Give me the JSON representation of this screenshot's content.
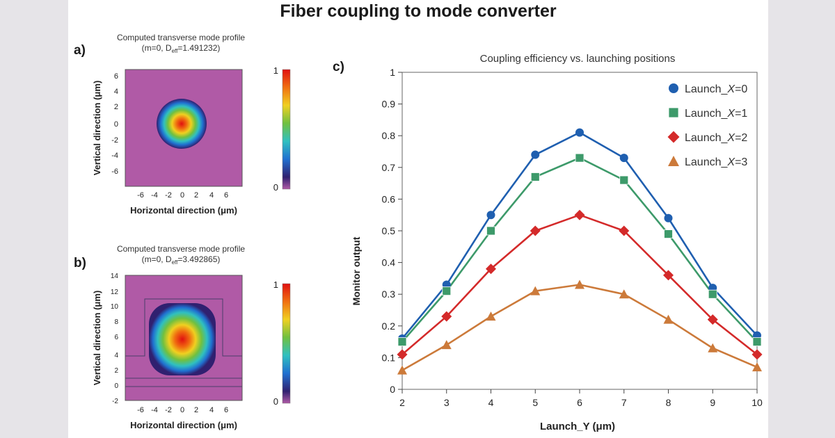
{
  "figure_title": "Fiber coupling to mode converter",
  "panels": {
    "a": {
      "letter": "a)",
      "title_line1": "Computed transverse mode profile",
      "title_line2": "(m=0, D",
      "title_sub": "eff",
      "title_end": "=1.491232)",
      "xlabel": "Horizontal direction (μm)",
      "ylabel": "Vertical direction (μm)",
      "xticks": [
        "-6",
        "-4",
        "-2",
        "0",
        "2",
        "4",
        "6"
      ],
      "yticks": [
        "6",
        "4",
        "2",
        "0",
        "-2",
        "-4",
        "-6"
      ],
      "cbar_top": "1",
      "cbar_bottom": "0"
    },
    "b": {
      "letter": "b)",
      "title_line1": "Computed transverse mode profile",
      "title_line2": "(m=0, D",
      "title_sub": "eff",
      "title_end": "=3.492865)",
      "xlabel": "Horizontal direction (μm)",
      "ylabel": "Vertical direction (μm)",
      "xticks": [
        "-6",
        "-4",
        "-2",
        "0",
        "2",
        "4",
        "6"
      ],
      "yticks": [
        "14",
        "12",
        "10",
        "8",
        "6",
        "4",
        "2",
        "0",
        "-2"
      ],
      "cbar_top": "1",
      "cbar_bottom": "0"
    },
    "c": {
      "letter": "c)"
    }
  },
  "colors": {
    "background_side": "#e6e4e8",
    "field_background": "#b05aa6",
    "launch_x0": "#1f5fb0",
    "launch_x1": "#3d9a6a",
    "launch_x2": "#d42a2a",
    "launch_x3": "#cc7a3a"
  },
  "chart_data": {
    "type": "line",
    "title": "Coupling efficiency vs. launching positions",
    "xlabel": "Launch_Y (μm)",
    "ylabel": "Monitor output",
    "x": [
      2,
      3,
      4,
      5,
      6,
      7,
      8,
      9,
      10
    ],
    "xlim": [
      2,
      10
    ],
    "ylim": [
      0,
      1
    ],
    "yticks": [
      0,
      0.1,
      0.2,
      0.3,
      0.4,
      0.5,
      0.6,
      0.7,
      0.8,
      0.9,
      1
    ],
    "grid": false,
    "legend_position": "top-right",
    "series": [
      {
        "name": "Launch_X=0",
        "label_prefix": "Launch_",
        "label_var": "X",
        "label_suffix": "=0",
        "color": "#1f5fb0",
        "marker": "circle",
        "values": [
          0.16,
          0.33,
          0.55,
          0.74,
          0.81,
          0.73,
          0.54,
          0.32,
          0.17
        ]
      },
      {
        "name": "Launch_X=1",
        "label_prefix": "Launch_",
        "label_var": "X",
        "label_suffix": "=1",
        "color": "#3d9a6a",
        "marker": "square",
        "values": [
          0.15,
          0.31,
          0.5,
          0.67,
          0.73,
          0.66,
          0.49,
          0.3,
          0.15
        ]
      },
      {
        "name": "Launch_X=2",
        "label_prefix": "Launch_",
        "label_var": "X",
        "label_suffix": "=2",
        "color": "#d42a2a",
        "marker": "diamond",
        "values": [
          0.11,
          0.23,
          0.38,
          0.5,
          0.55,
          0.5,
          0.36,
          0.22,
          0.11
        ]
      },
      {
        "name": "Launch_X=3",
        "label_prefix": "Launch_",
        "label_var": "X",
        "label_suffix": "=3",
        "color": "#cc7a3a",
        "marker": "triangle",
        "values": [
          0.06,
          0.14,
          0.23,
          0.31,
          0.33,
          0.3,
          0.22,
          0.13,
          0.07
        ]
      }
    ]
  }
}
